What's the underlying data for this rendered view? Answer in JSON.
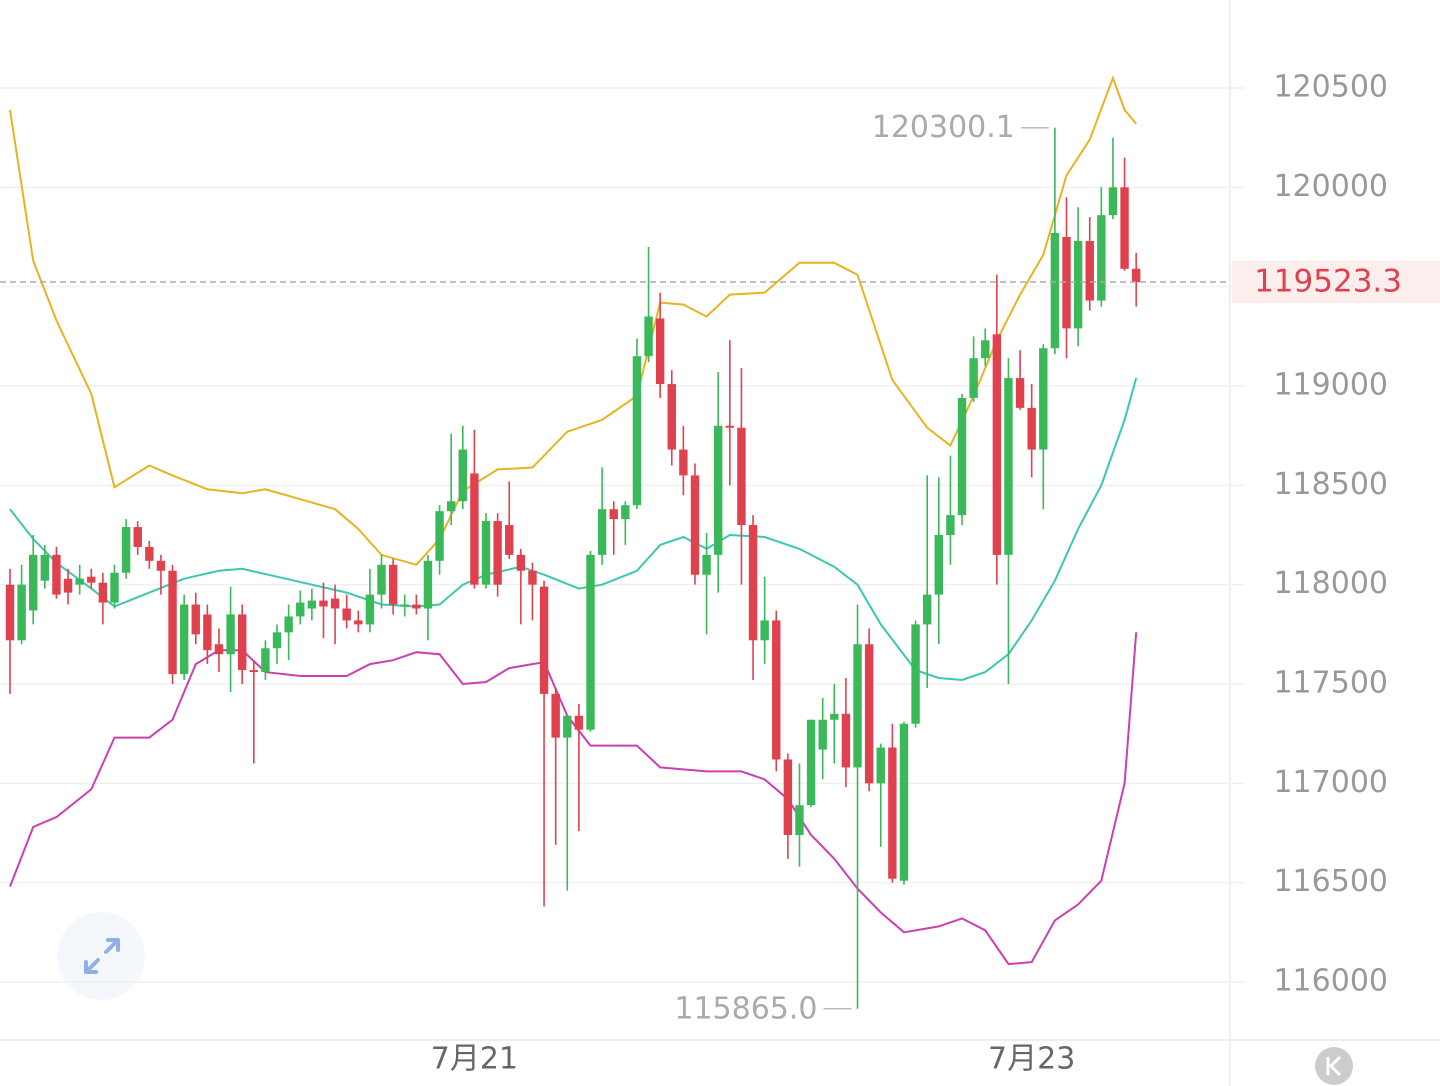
{
  "chart_data": {
    "type": "candlestick",
    "categories": [
      null,
      null,
      null,
      null,
      null,
      null,
      null,
      null,
      null,
      null,
      null,
      null,
      null,
      null,
      null,
      null,
      null,
      null,
      null,
      null,
      null,
      null,
      null,
      null,
      null,
      null,
      null,
      null,
      null,
      null,
      null,
      null,
      null,
      null,
      null,
      null,
      null,
      null,
      null,
      null,
      "7月21",
      null,
      null,
      null,
      null,
      null,
      null,
      null,
      null,
      null,
      null,
      null,
      null,
      null,
      null,
      null,
      null,
      null,
      null,
      null,
      null,
      null,
      null,
      null,
      null,
      null,
      null,
      null,
      null,
      null,
      null,
      null,
      null,
      null,
      null,
      null,
      null,
      null,
      null,
      null,
      null,
      null,
      null,
      null,
      null,
      null,
      null,
      null,
      "7月23",
      null,
      null,
      null,
      null,
      null,
      null,
      null,
      null,
      null
    ],
    "ohlc": [
      [
        118000,
        118080,
        117450,
        117720
      ],
      [
        117720,
        118100,
        117700,
        118000
      ],
      [
        117870,
        118250,
        117800,
        118150
      ],
      [
        118020,
        118200,
        117980,
        118150
      ],
      [
        118150,
        118190,
        117930,
        117950
      ],
      [
        118030,
        118080,
        117900,
        117960
      ],
      [
        118000,
        118100,
        117950,
        118030
      ],
      [
        118040,
        118080,
        117980,
        118010
      ],
      [
        118010,
        118060,
        117800,
        117910
      ],
      [
        117910,
        118100,
        117880,
        118060
      ],
      [
        118060,
        118330,
        118030,
        118290
      ],
      [
        118290,
        118320,
        118150,
        118190
      ],
      [
        118190,
        118220,
        118080,
        118120
      ],
      [
        118120,
        118150,
        117950,
        118070
      ],
      [
        118070,
        118100,
        117500,
        117550
      ],
      [
        117550,
        117950,
        117520,
        117900
      ],
      [
        117900,
        117960,
        117700,
        117750
      ],
      [
        117850,
        117900,
        117600,
        117670
      ],
      [
        117700,
        117780,
        117560,
        117650
      ],
      [
        117650,
        117990,
        117460,
        117850
      ],
      [
        117850,
        117900,
        117500,
        117570
      ],
      [
        117570,
        117620,
        117100,
        117560
      ],
      [
        117560,
        117720,
        117520,
        117680
      ],
      [
        117680,
        117800,
        117600,
        117760
      ],
      [
        117760,
        117900,
        117620,
        117840
      ],
      [
        117840,
        117970,
        117800,
        117910
      ],
      [
        117880,
        117980,
        117820,
        117920
      ],
      [
        117920,
        118010,
        117730,
        117890
      ],
      [
        117930,
        118000,
        117700,
        117880
      ],
      [
        117880,
        117950,
        117780,
        117820
      ],
      [
        117820,
        117870,
        117760,
        117800
      ],
      [
        117800,
        118080,
        117760,
        117950
      ],
      [
        117950,
        118150,
        117880,
        118100
      ],
      [
        118100,
        118130,
        117850,
        117900
      ],
      [
        117890,
        117950,
        117840,
        117900
      ],
      [
        117900,
        117950,
        117850,
        117880
      ],
      [
        117880,
        118150,
        117720,
        118120
      ],
      [
        118120,
        118400,
        118050,
        118370
      ],
      [
        118370,
        118760,
        118300,
        118420
      ],
      [
        118420,
        118800,
        118380,
        118680
      ],
      [
        118560,
        118780,
        117980,
        118000
      ],
      [
        118000,
        118360,
        117980,
        118320
      ],
      [
        118320,
        118360,
        117940,
        118000
      ],
      [
        118300,
        118520,
        118130,
        118150
      ],
      [
        118150,
        118180,
        117800,
        118070
      ],
      [
        118070,
        118110,
        117820,
        118000
      ],
      [
        117990,
        118020,
        116380,
        117450
      ],
      [
        117450,
        117480,
        116690,
        117230
      ],
      [
        117230,
        117290,
        116460,
        117340
      ],
      [
        117340,
        117400,
        116760,
        117270
      ],
      [
        117270,
        118170,
        117260,
        118150
      ],
      [
        118150,
        118590,
        118100,
        118380
      ],
      [
        118380,
        118420,
        118150,
        118330
      ],
      [
        118330,
        118420,
        118200,
        118400
      ],
      [
        118400,
        119240,
        118380,
        119150
      ],
      [
        119150,
        119700,
        119120,
        119350
      ],
      [
        119340,
        119470,
        118940,
        119010
      ],
      [
        119010,
        119080,
        118600,
        118680
      ],
      [
        118680,
        118800,
        118450,
        118550
      ],
      [
        118550,
        118610,
        118000,
        118050
      ],
      [
        118050,
        118260,
        117750,
        118150
      ],
      [
        118150,
        119070,
        117960,
        118800
      ],
      [
        118800,
        119230,
        118500,
        118790
      ],
      [
        118790,
        119090,
        118000,
        118300
      ],
      [
        118300,
        118350,
        117520,
        117720
      ],
      [
        117720,
        118040,
        117600,
        117820
      ],
      [
        117820,
        117870,
        117060,
        117120
      ],
      [
        117120,
        117150,
        116620,
        116740
      ],
      [
        116740,
        117100,
        116580,
        116890
      ],
      [
        116890,
        117320,
        116880,
        117320
      ],
      [
        117170,
        117430,
        117020,
        117320
      ],
      [
        117320,
        117500,
        117100,
        117350
      ],
      [
        117350,
        117530,
        116980,
        117080
      ],
      [
        117080,
        117900,
        115865,
        117700
      ],
      [
        117700,
        117780,
        116960,
        117000
      ],
      [
        117000,
        117200,
        116680,
        117180
      ],
      [
        117180,
        117300,
        116500,
        116520
      ],
      [
        116510,
        117310,
        116490,
        117300
      ],
      [
        117300,
        117820,
        117280,
        117800
      ],
      [
        117800,
        118550,
        117480,
        117950
      ],
      [
        117950,
        118540,
        117700,
        118250
      ],
      [
        118250,
        118650,
        118100,
        118350
      ],
      [
        118350,
        118960,
        118300,
        118940
      ],
      [
        118940,
        119250,
        118920,
        119140
      ],
      [
        119140,
        119290,
        119100,
        119230
      ],
      [
        119260,
        119560,
        118000,
        118150
      ],
      [
        118150,
        119140,
        117500,
        119040
      ],
      [
        119040,
        119180,
        118880,
        118890
      ],
      [
        118890,
        119010,
        118540,
        118680
      ],
      [
        118680,
        119210,
        118380,
        119190
      ],
      [
        119190,
        120300.1,
        119160,
        119770
      ],
      [
        119750,
        119950,
        119140,
        119290
      ],
      [
        119290,
        119900,
        119200,
        119730
      ],
      [
        119730,
        119850,
        119380,
        119430
      ],
      [
        119430,
        120000,
        119400,
        119860
      ],
      [
        119860,
        120250,
        119840,
        120000
      ],
      [
        120000,
        120150,
        119580,
        119590
      ],
      [
        119590,
        119670,
        119400,
        119523.3
      ]
    ],
    "up_color": "#3bb85a",
    "down_color": "#e0414f",
    "bands": [
      {
        "color": "#e6b422",
        "x": [
          0,
          2,
          4,
          7,
          9,
          12,
          14,
          17,
          20,
          22,
          25,
          28,
          30,
          32,
          35,
          37,
          39,
          42,
          45,
          48,
          51,
          54,
          56,
          58,
          60,
          62,
          65,
          68,
          71,
          73,
          76,
          79,
          81,
          83,
          85,
          87,
          89,
          91,
          93,
          95,
          96,
          97
        ],
        "values": [
          120390,
          119630,
          119330,
          118960,
          118490,
          118600,
          118550,
          118480,
          118460,
          118480,
          118430,
          118380,
          118280,
          118150,
          118100,
          118230,
          118470,
          118580,
          118590,
          118770,
          118830,
          118950,
          119420,
          119410,
          119350,
          119460,
          119470,
          119620,
          119620,
          119560,
          119030,
          118790,
          118700,
          118950,
          119230,
          119460,
          119660,
          120060,
          120240,
          120550,
          120390,
          120320
        ]
      },
      {
        "color": "#3cc8b0",
        "x": [
          0,
          2,
          4,
          7,
          9,
          12,
          15,
          18,
          20,
          23,
          26,
          29,
          32,
          35,
          37,
          39,
          41,
          44,
          46,
          49,
          51,
          54,
          56,
          58,
          60,
          62,
          65,
          68,
          71,
          73,
          75,
          78,
          80,
          82,
          84,
          86,
          88,
          90,
          92,
          94,
          96,
          97
        ],
        "values": [
          118380,
          118230,
          118110,
          117980,
          117890,
          117960,
          118030,
          118070,
          118080,
          118040,
          118000,
          117960,
          117900,
          117890,
          117900,
          118000,
          118050,
          118090,
          118050,
          117980,
          118000,
          118070,
          118200,
          118240,
          118180,
          118250,
          118240,
          118180,
          118090,
          118000,
          117800,
          117570,
          117530,
          117520,
          117560,
          117650,
          117820,
          118020,
          118280,
          118500,
          118830,
          119040
        ]
      },
      {
        "color": "#cc3fb0",
        "x": [
          0,
          2,
          4,
          7,
          9,
          12,
          14,
          16,
          18,
          20,
          22,
          25,
          29,
          31,
          33,
          35,
          37,
          39,
          41,
          43,
          46,
          48,
          50,
          54,
          56,
          60,
          63,
          65,
          67,
          69,
          71,
          73,
          75,
          77,
          80,
          82,
          84,
          86,
          88,
          90,
          92,
          94,
          96,
          97
        ],
        "values": [
          116480,
          116780,
          116830,
          116970,
          117230,
          117230,
          117320,
          117600,
          117670,
          117670,
          117560,
          117540,
          117540,
          117600,
          117620,
          117660,
          117650,
          117500,
          117510,
          117580,
          117610,
          117340,
          117190,
          117190,
          117080,
          117060,
          117060,
          117020,
          116920,
          116740,
          116620,
          116470,
          116350,
          116250,
          116280,
          116320,
          116260,
          116090,
          116100,
          116310,
          116390,
          116510,
          117000,
          117760
        ]
      }
    ],
    "ylim": [
      115708,
      120943
    ],
    "yticks": [
      116000,
      116500,
      117000,
      117500,
      118000,
      118500,
      119000,
      119500,
      120000,
      120500
    ],
    "grid": true,
    "last_price": {
      "value": 119523.3,
      "label": "119523.3"
    },
    "annotations": [
      {
        "index": 90,
        "value": 120300.1,
        "label": "120300.1"
      },
      {
        "index": 73,
        "value": 115865,
        "label": "115865.0"
      }
    ]
  }
}
